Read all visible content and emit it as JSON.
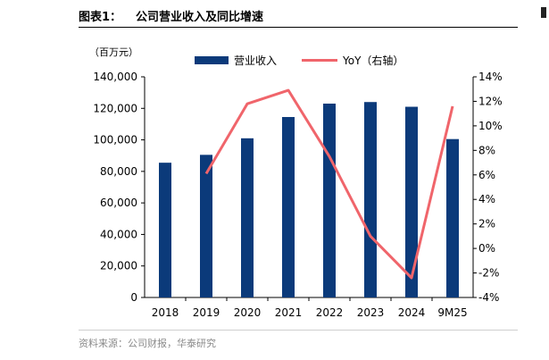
{
  "figure": {
    "number": "图表1：",
    "title": "公司营业收入及同比增速",
    "unit": "（百万元）",
    "source": "资料来源：公司财报，华泰研究"
  },
  "colors": {
    "bar": "#0b3a7a",
    "line": "#f0656b"
  },
  "chart_data": {
    "type": "bar",
    "categories": [
      "2018",
      "2019",
      "2020",
      "2021",
      "2022",
      "2023",
      "2024",
      "9M25"
    ],
    "series": [
      {
        "name": "营业收入",
        "type": "bar",
        "axis": "left",
        "values": [
          85500,
          90500,
          101000,
          114500,
          123000,
          124000,
          121000,
          100500
        ]
      },
      {
        "name": "YoY（右轴）",
        "type": "line",
        "axis": "right",
        "values": [
          null,
          6.1,
          11.8,
          12.9,
          7.5,
          1.0,
          -2.4,
          11.6
        ]
      }
    ],
    "ylim_left": [
      0,
      140000
    ],
    "yticks_left": [
      "0",
      "20,000",
      "40,000",
      "60,000",
      "80,000",
      "100,000",
      "120,000",
      "140,000"
    ],
    "ylim_right": [
      -4,
      14
    ],
    "yticks_right": [
      "-4%",
      "-2%",
      "0%",
      "2%",
      "4%",
      "6%",
      "8%",
      "10%",
      "12%",
      "14%"
    ],
    "grid": false,
    "legend_position": "top"
  }
}
